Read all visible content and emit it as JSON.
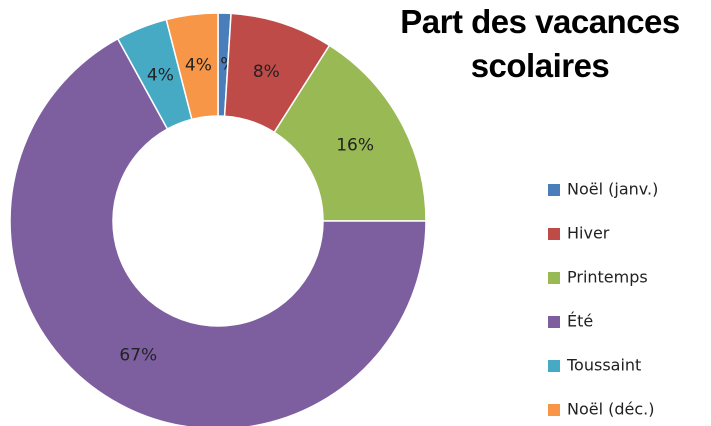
{
  "chart_data": {
    "type": "donut",
    "title": "Part des vacances scolaires",
    "categories": [
      "Noël (janv.)",
      "Hiver",
      "Printemps",
      "Été",
      "Toussaint",
      "Noël (déc.)"
    ],
    "values": [
      1,
      8,
      16,
      67,
      4,
      4
    ],
    "value_labels": [
      "1%",
      "8%",
      "16%",
      "67%",
      "4%",
      "4%"
    ],
    "colors": [
      "#4a7ebb",
      "#be4b48",
      "#98b954",
      "#7d5fa0",
      "#46aac5",
      "#f79646"
    ],
    "legend": "right"
  }
}
